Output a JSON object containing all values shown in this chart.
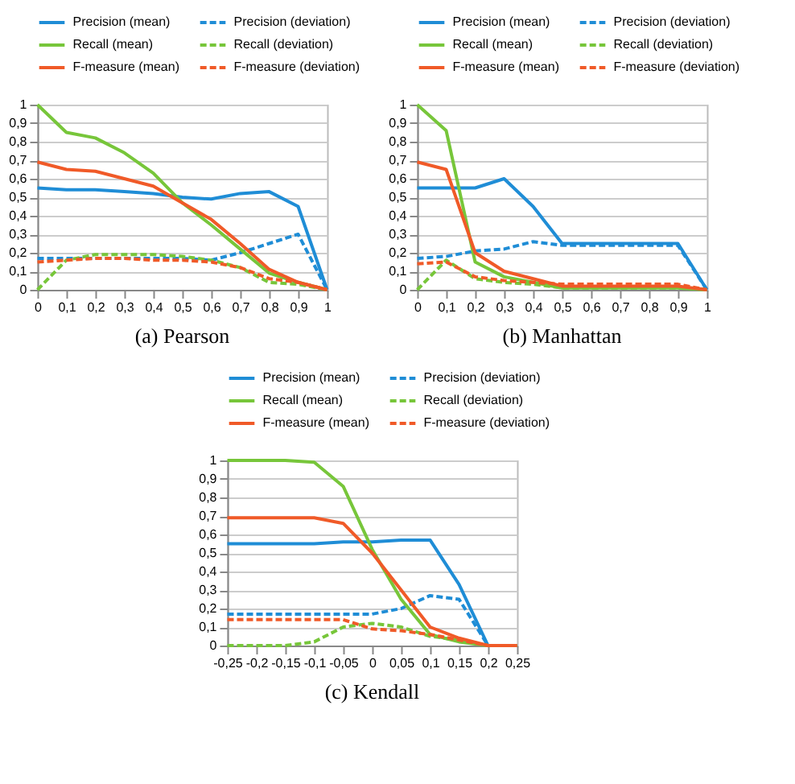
{
  "chart_data": [
    {
      "type": "line",
      "title": "(a) Pearson",
      "categories": [
        "0",
        "0,1",
        "0,2",
        "0,3",
        "0,4",
        "0,5",
        "0,6",
        "0,7",
        "0,8",
        "0,9",
        "1"
      ],
      "ylim": [
        0,
        1
      ],
      "yticks": [
        {
          "value": 0,
          "label": "0"
        },
        {
          "value": 0.1,
          "label": "0,1"
        },
        {
          "value": 0.2,
          "label": "0,2"
        },
        {
          "value": 0.3,
          "label": "0,3"
        },
        {
          "value": 0.4,
          "label": "0,4"
        },
        {
          "value": 0.5,
          "label": "0,5"
        },
        {
          "value": 0.6,
          "label": "0,6"
        },
        {
          "value": 0.7,
          "label": "0,7"
        },
        {
          "value": 0.8,
          "label": "0,8"
        },
        {
          "value": 0.9,
          "label": "0,9"
        },
        {
          "value": 1,
          "label": "1"
        }
      ],
      "grid": "y",
      "legend": "top",
      "series": [
        {
          "name": "Precision (mean)",
          "color": "#1f8dd6",
          "line_style": "solid",
          "values": [
            0.55,
            0.54,
            0.54,
            0.53,
            0.52,
            0.5,
            0.49,
            0.52,
            0.53,
            0.45,
            0
          ]
        },
        {
          "name": "Precision (deviation)",
          "color": "#1f8dd6",
          "line_style": "dashed",
          "values": [
            0.17,
            0.17,
            0.17,
            0.17,
            0.17,
            0.17,
            0.16,
            0.2,
            0.25,
            0.3,
            0
          ]
        },
        {
          "name": "Recall (mean)",
          "color": "#77c63a",
          "line_style": "solid",
          "values": [
            1,
            0.85,
            0.82,
            0.74,
            0.63,
            0.47,
            0.35,
            0.22,
            0.09,
            0.04,
            0
          ]
        },
        {
          "name": "Recall (deviation)",
          "color": "#77c63a",
          "line_style": "dashed",
          "values": [
            0,
            0.16,
            0.19,
            0.19,
            0.19,
            0.18,
            0.16,
            0.12,
            0.04,
            0.03,
            0
          ]
        },
        {
          "name": "F-measure (mean)",
          "color": "#f05a28",
          "line_style": "solid",
          "values": [
            0.69,
            0.65,
            0.64,
            0.6,
            0.56,
            0.47,
            0.38,
            0.25,
            0.11,
            0.04,
            0
          ]
        },
        {
          "name": "F-measure (deviation)",
          "color": "#f05a28",
          "line_style": "dashed",
          "values": [
            0.15,
            0.16,
            0.17,
            0.17,
            0.16,
            0.16,
            0.15,
            0.12,
            0.06,
            0.04,
            0
          ]
        }
      ]
    },
    {
      "type": "line",
      "title": "(b) Manhattan",
      "categories": [
        "0",
        "0,1",
        "0,2",
        "0,3",
        "0,4",
        "0,5",
        "0,6",
        "0,7",
        "0,8",
        "0,9",
        "1"
      ],
      "ylim": [
        0,
        1
      ],
      "yticks": [
        {
          "value": 0,
          "label": "0"
        },
        {
          "value": 0.1,
          "label": "0,1"
        },
        {
          "value": 0.2,
          "label": "0,2"
        },
        {
          "value": 0.3,
          "label": "0,3"
        },
        {
          "value": 0.4,
          "label": "0,4"
        },
        {
          "value": 0.5,
          "label": "0,5"
        },
        {
          "value": 0.6,
          "label": "0,6"
        },
        {
          "value": 0.7,
          "label": "0,7"
        },
        {
          "value": 0.8,
          "label": "0,8"
        },
        {
          "value": 0.9,
          "label": "0,9"
        },
        {
          "value": 1,
          "label": "1"
        }
      ],
      "grid": "y",
      "legend": "top",
      "series": [
        {
          "name": "Precision (mean)",
          "color": "#1f8dd6",
          "line_style": "solid",
          "values": [
            0.55,
            0.55,
            0.55,
            0.6,
            0.45,
            0.25,
            0.25,
            0.25,
            0.25,
            0.25,
            0
          ]
        },
        {
          "name": "Precision (deviation)",
          "color": "#1f8dd6",
          "line_style": "dashed",
          "values": [
            0.17,
            0.18,
            0.21,
            0.22,
            0.26,
            0.24,
            0.24,
            0.24,
            0.24,
            0.24,
            0
          ]
        },
        {
          "name": "Recall (mean)",
          "color": "#77c63a",
          "line_style": "solid",
          "values": [
            1,
            0.86,
            0.15,
            0.07,
            0.04,
            0.01,
            0.01,
            0.01,
            0.01,
            0.01,
            0
          ]
        },
        {
          "name": "Recall (deviation)",
          "color": "#77c63a",
          "line_style": "dashed",
          "values": [
            0,
            0.16,
            0.06,
            0.04,
            0.03,
            0.01,
            0.01,
            0.01,
            0.01,
            0.01,
            0
          ]
        },
        {
          "name": "F-measure (mean)",
          "color": "#f05a28",
          "line_style": "solid",
          "values": [
            0.69,
            0.65,
            0.2,
            0.1,
            0.06,
            0.02,
            0.02,
            0.02,
            0.02,
            0.02,
            0
          ]
        },
        {
          "name": "F-measure (deviation)",
          "color": "#f05a28",
          "line_style": "dashed",
          "values": [
            0.14,
            0.15,
            0.07,
            0.05,
            0.04,
            0.03,
            0.03,
            0.03,
            0.03,
            0.03,
            0
          ]
        }
      ]
    },
    {
      "type": "line",
      "title": "(c) Kendall",
      "categories": [
        "-0,25",
        "-0,2",
        "-0,15",
        "-0,1",
        "-0,05",
        "0",
        "0,05",
        "0,1",
        "0,15",
        "0,2",
        "0,25"
      ],
      "ylim": [
        0,
        1
      ],
      "yticks": [
        {
          "value": 0,
          "label": "0"
        },
        {
          "value": 0.1,
          "label": "0,1"
        },
        {
          "value": 0.2,
          "label": "0,2"
        },
        {
          "value": 0.3,
          "label": "0,3"
        },
        {
          "value": 0.4,
          "label": "0,4"
        },
        {
          "value": 0.5,
          "label": "0,5"
        },
        {
          "value": 0.6,
          "label": "0,6"
        },
        {
          "value": 0.7,
          "label": "0,7"
        },
        {
          "value": 0.8,
          "label": "0,8"
        },
        {
          "value": 0.9,
          "label": "0,9"
        },
        {
          "value": 1,
          "label": "1"
        }
      ],
      "grid": "y",
      "legend": "top",
      "series": [
        {
          "name": "Precision (mean)",
          "color": "#1f8dd6",
          "line_style": "solid",
          "values": [
            0.55,
            0.55,
            0.55,
            0.55,
            0.56,
            0.56,
            0.57,
            0.57,
            0.33,
            0,
            0
          ]
        },
        {
          "name": "Precision (deviation)",
          "color": "#1f8dd6",
          "line_style": "dashed",
          "values": [
            0.17,
            0.17,
            0.17,
            0.17,
            0.17,
            0.17,
            0.2,
            0.27,
            0.25,
            0,
            0
          ]
        },
        {
          "name": "Recall (mean)",
          "color": "#77c63a",
          "line_style": "solid",
          "values": [
            1,
            1,
            1,
            0.99,
            0.86,
            0.52,
            0.25,
            0.06,
            0.02,
            0,
            0
          ]
        },
        {
          "name": "Recall (deviation)",
          "color": "#77c63a",
          "line_style": "dashed",
          "values": [
            0,
            0,
            0,
            0.02,
            0.1,
            0.12,
            0.1,
            0.05,
            0.03,
            0,
            0
          ]
        },
        {
          "name": "F-measure (mean)",
          "color": "#f05a28",
          "line_style": "solid",
          "values": [
            0.69,
            0.69,
            0.69,
            0.69,
            0.66,
            0.5,
            0.3,
            0.1,
            0.04,
            0,
            0
          ]
        },
        {
          "name": "F-measure (deviation)",
          "color": "#f05a28",
          "line_style": "dashed",
          "values": [
            0.14,
            0.14,
            0.14,
            0.14,
            0.14,
            0.09,
            0.08,
            0.06,
            0.03,
            0,
            0
          ]
        }
      ]
    }
  ]
}
